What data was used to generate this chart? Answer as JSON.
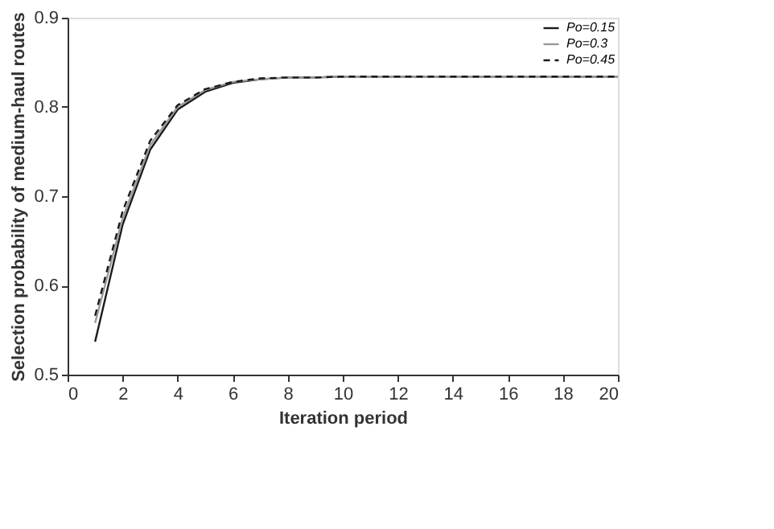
{
  "chart_data": {
    "type": "line",
    "xlabel": "Iteration period",
    "ylabel": "Selection probability of medium-haul routes",
    "x": [
      1,
      2,
      3,
      4,
      5,
      6,
      7,
      8,
      9,
      10,
      11,
      12,
      13,
      14,
      15,
      16,
      17,
      18,
      19,
      20
    ],
    "xlim": [
      0,
      20
    ],
    "xticks": [
      0,
      2,
      4,
      6,
      8,
      10,
      12,
      14,
      16,
      18,
      20
    ],
    "ylim": [
      0.5,
      0.9
    ],
    "yticks": [
      0.5,
      0.6,
      0.7,
      0.8,
      0.9
    ],
    "grid": false,
    "legend": "top right",
    "marker": "none",
    "series": [
      {
        "name": "Po=0.15",
        "color": "#1a1a1a",
        "line_style": "solid",
        "values": [
          0.537,
          0.668,
          0.752,
          0.797,
          0.817,
          0.827,
          0.831,
          0.833,
          0.833,
          0.834,
          0.834,
          0.834,
          0.834,
          0.834,
          0.834,
          0.834,
          0.834,
          0.834,
          0.834,
          0.834
        ]
      },
      {
        "name": "Po=0.3",
        "color": "#9a9a9a",
        "line_style": "solid",
        "values": [
          0.558,
          0.675,
          0.757,
          0.8,
          0.819,
          0.828,
          0.831,
          0.833,
          0.833,
          0.834,
          0.834,
          0.834,
          0.834,
          0.834,
          0.834,
          0.834,
          0.834,
          0.834,
          0.834,
          0.834
        ]
      },
      {
        "name": "Po=0.45",
        "color": "#1a1a1a",
        "line_style": "dashed",
        "values": [
          0.566,
          0.683,
          0.762,
          0.802,
          0.82,
          0.828,
          0.832,
          0.833,
          0.833,
          0.834,
          0.834,
          0.834,
          0.834,
          0.834,
          0.834,
          0.834,
          0.834,
          0.834,
          0.834,
          0.834
        ]
      }
    ]
  }
}
